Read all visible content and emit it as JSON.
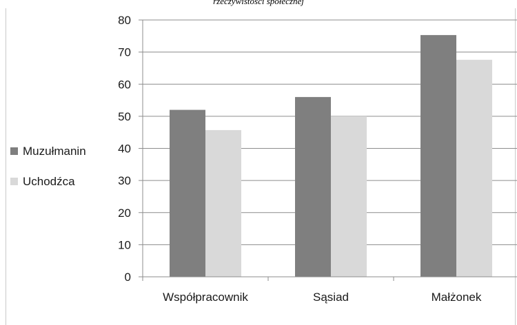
{
  "caption": "rzeczywistości społecznej",
  "chart_data": {
    "type": "bar",
    "categories": [
      "Współpracownik",
      "Sąsiad",
      "Małżonek"
    ],
    "series": [
      {
        "name": "Muzułmanin",
        "values": [
          52,
          56,
          75.3
        ],
        "color": "#7f7f7f"
      },
      {
        "name": "Uchodźca",
        "values": [
          45.7,
          50,
          67.6
        ],
        "color": "#d9d9d9"
      }
    ],
    "yticks": [
      0,
      10,
      20,
      30,
      40,
      50,
      60,
      70,
      80
    ],
    "ylim": [
      0,
      80
    ],
    "grid": true,
    "legend_position": "left"
  }
}
